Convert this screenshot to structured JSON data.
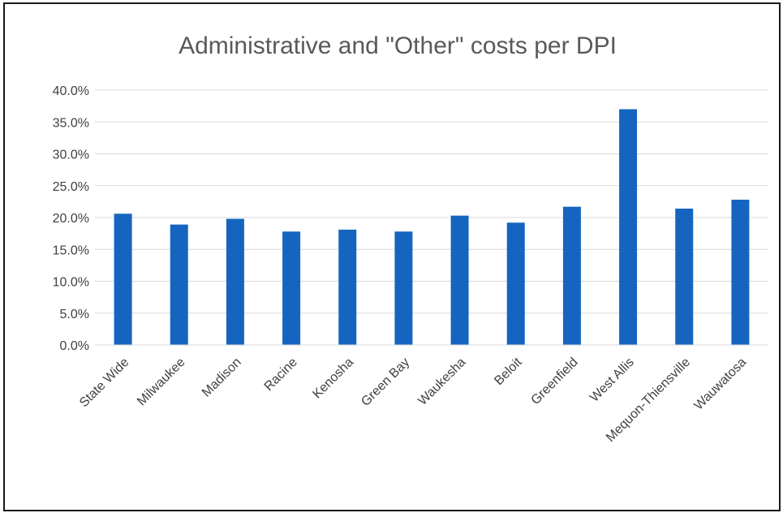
{
  "chart_data": {
    "type": "bar",
    "title": "Administrative and \"Other\" costs per DPI",
    "xlabel": "",
    "ylabel": "",
    "categories": [
      "State Wide",
      "Milwaukee",
      "Madison",
      "Racine",
      "Kenosha",
      "Green Bay",
      "Waukesha",
      "Beloit",
      "Greenfield",
      "West Allis",
      "Mequon-Thiensville",
      "Wauwatosa"
    ],
    "values": [
      20.6,
      18.9,
      19.8,
      17.8,
      18.1,
      17.8,
      20.3,
      19.2,
      21.7,
      37.0,
      21.4,
      22.8
    ],
    "ylim": [
      0,
      40
    ],
    "yticks": [
      "0.0%",
      "5.0%",
      "10.0%",
      "15.0%",
      "20.0%",
      "25.0%",
      "30.0%",
      "35.0%",
      "40.0%"
    ],
    "value_format": "percent",
    "grid": true,
    "legend": "none",
    "bar_color": "#1565c0",
    "grid_color": "#d9d9d9"
  }
}
